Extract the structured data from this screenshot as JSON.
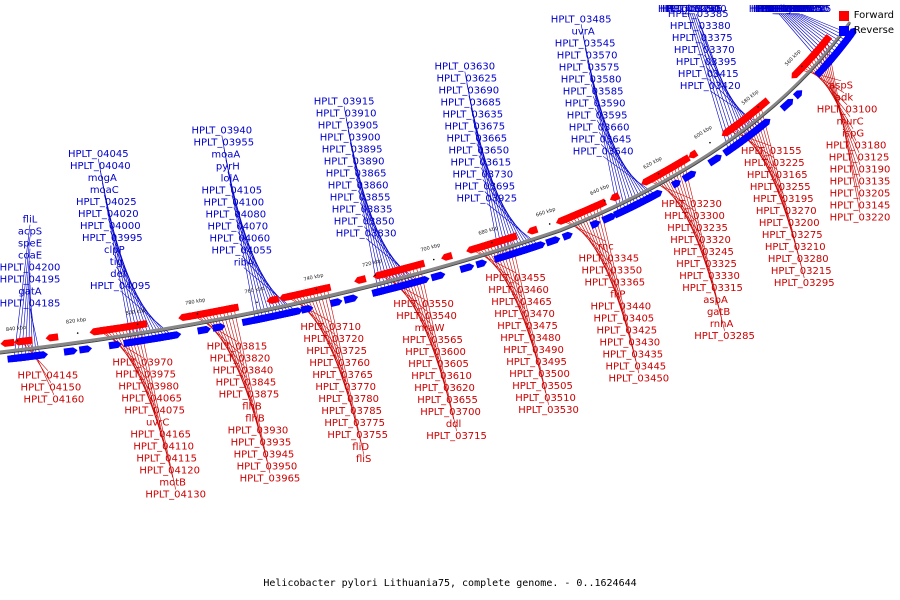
{
  "caption": "Helicobacter pylori Lithuania75, complete genome. - 0..1624644",
  "legend": [
    {
      "label": "Forward",
      "color": "#ff0000"
    },
    {
      "label": "Reverse",
      "color": "#0000ff"
    }
  ],
  "colors": {
    "forward_label": "#0000cc",
    "reverse_label": "#cc0000",
    "forward_block": "#ff0000",
    "reverse_block": "#0000ff",
    "backbone": "#888888"
  },
  "ticks": [
    "560 kbp",
    "580 kbp",
    "600 kbp",
    "620 kbp",
    "640 kbp",
    "660 kbp",
    "680 kbp",
    "700 kbp",
    "720 kbp",
    "740 kbp",
    "760 kbp",
    "780 kbp",
    "800 kbp",
    "820 kbp",
    "840 kbp"
  ],
  "outer_labels": [
    "HPLT_02985",
    "HPLT_03045",
    "HPLT_03035",
    "HPLT_03095",
    "HPLT_03050",
    "ligA",
    "HPLT_03090",
    "HPLT_03175",
    "HPLT_03170",
    "HPLT_03110",
    "HPLT_03140",
    "HPLT_03185",
    "HPLT_03250",
    "HPLT_03260",
    "HPLT_03265",
    "glmU",
    "HPLT_03390",
    "HPLT_03385",
    "HPLT_03380",
    "HPLT_03375",
    "HPLT_03370",
    "HPLT_03395",
    "HPLT_03415",
    "HPLT_03420",
    "HPLT_03485",
    "uvrA",
    "HPLT_03545",
    "HPLT_03570",
    "HPLT_03575",
    "HPLT_03580",
    "HPLT_03585",
    "HPLT_03590",
    "HPLT_03595",
    "HPLT_03660",
    "HPLT_03645",
    "HPLT_03640",
    "HPLT_03630",
    "HPLT_03625",
    "HPLT_03690",
    "HPLT_03685",
    "HPLT_03635",
    "HPLT_03675",
    "HPLT_03665",
    "HPLT_03650",
    "HPLT_03615",
    "HPLT_03730",
    "HPLT_03695",
    "HPLT_03925",
    "HPLT_03915",
    "HPLT_03910",
    "HPLT_03905",
    "HPLT_03900",
    "HPLT_03895",
    "HPLT_03890",
    "HPLT_03865",
    "HPLT_03860",
    "HPLT_03855",
    "HPLT_03835",
    "HPLT_03850",
    "HPLT_03830",
    "HPLT_03940",
    "HPLT_03955",
    "moaA",
    "pyrH",
    "lolA",
    "HPLT_04105",
    "HPLT_04100",
    "HPLT_04080",
    "HPLT_04070",
    "HPLT_04060",
    "HPLT_04055",
    "ribA",
    "HPLT_04045",
    "HPLT_04040",
    "mogA",
    "moaC",
    "HPLT_04025",
    "HPLT_04020",
    "HPLT_04000",
    "HPLT_03995",
    "clpP",
    "tig",
    "def",
    "HPLT_04095",
    "fliL",
    "acpS",
    "speE",
    "coaE",
    "HPLT_04200",
    "HPLT_04195",
    "gatA",
    "HPLT_04185"
  ],
  "inner_labels": [
    "aspS",
    "adk",
    "HPLT_03100",
    "murC",
    "ispG",
    "HPLT_03180",
    "HPLT_03125",
    "HPLT_03190",
    "HPLT_03135",
    "HPLT_03205",
    "HPLT_03145",
    "HPLT_03220",
    "HPLT_03155",
    "HPLT_03225",
    "HPLT_03165",
    "HPLT_03255",
    "HPLT_03195",
    "HPLT_03270",
    "HPLT_03200",
    "HPLT_03275",
    "HPLT_03210",
    "HPLT_03280",
    "HPLT_03215",
    "HPLT_03295",
    "HPLT_03230",
    "HPLT_03300",
    "HPLT_03235",
    "HPLT_03320",
    "HPLT_03245",
    "HPLT_03325",
    "HPLT_03330",
    "HPLT_03315",
    "aspA",
    "gatB",
    "rnhA",
    "HPLT_03285",
    "rnc",
    "HPLT_03345",
    "HPLT_03350",
    "HPLT_03365",
    "fliP",
    "HPLT_03440",
    "HPLT_03405",
    "HPLT_03425",
    "HPLT_03430",
    "HPLT_03435",
    "HPLT_03445",
    "HPLT_03450",
    "HPLT_03455",
    "HPLT_03460",
    "HPLT_03465",
    "HPLT_03470",
    "HPLT_03475",
    "HPLT_03480",
    "HPLT_03490",
    "HPLT_03495",
    "HPLT_03500",
    "HPLT_03505",
    "HPLT_03510",
    "HPLT_03530",
    "HPLT_03550",
    "HPLT_03540",
    "mraW",
    "HPLT_03565",
    "HPLT_03600",
    "HPLT_03605",
    "HPLT_03610",
    "HPLT_03620",
    "HPLT_03655",
    "HPLT_03700",
    "ddl",
    "HPLT_03715",
    "HPLT_03710",
    "HPLT_03720",
    "HPLT_03725",
    "HPLT_03760",
    "HPLT_03765",
    "HPLT_03770",
    "HPLT_03780",
    "HPLT_03785",
    "HPLT_03775",
    "HPLT_03755",
    "fliD",
    "fliS",
    "HPLT_03815",
    "HPLT_03820",
    "HPLT_03840",
    "HPLT_03845",
    "HPLT_03875",
    "flhB",
    "flhB",
    "HPLT_03930",
    "HPLT_03935",
    "HPLT_03945",
    "HPLT_03950",
    "HPLT_03965",
    "HPLT_03970",
    "HPLT_03975",
    "HPLT_03980",
    "HPLT_04065",
    "HPLT_04075",
    "uvrC",
    "HPLT_04165",
    "HPLT_04110",
    "HPLT_04115",
    "HPLT_04120",
    "motB",
    "HPLT_04130",
    "HPLT_04145",
    "HPLT_04150",
    "HPLT_04160"
  ]
}
